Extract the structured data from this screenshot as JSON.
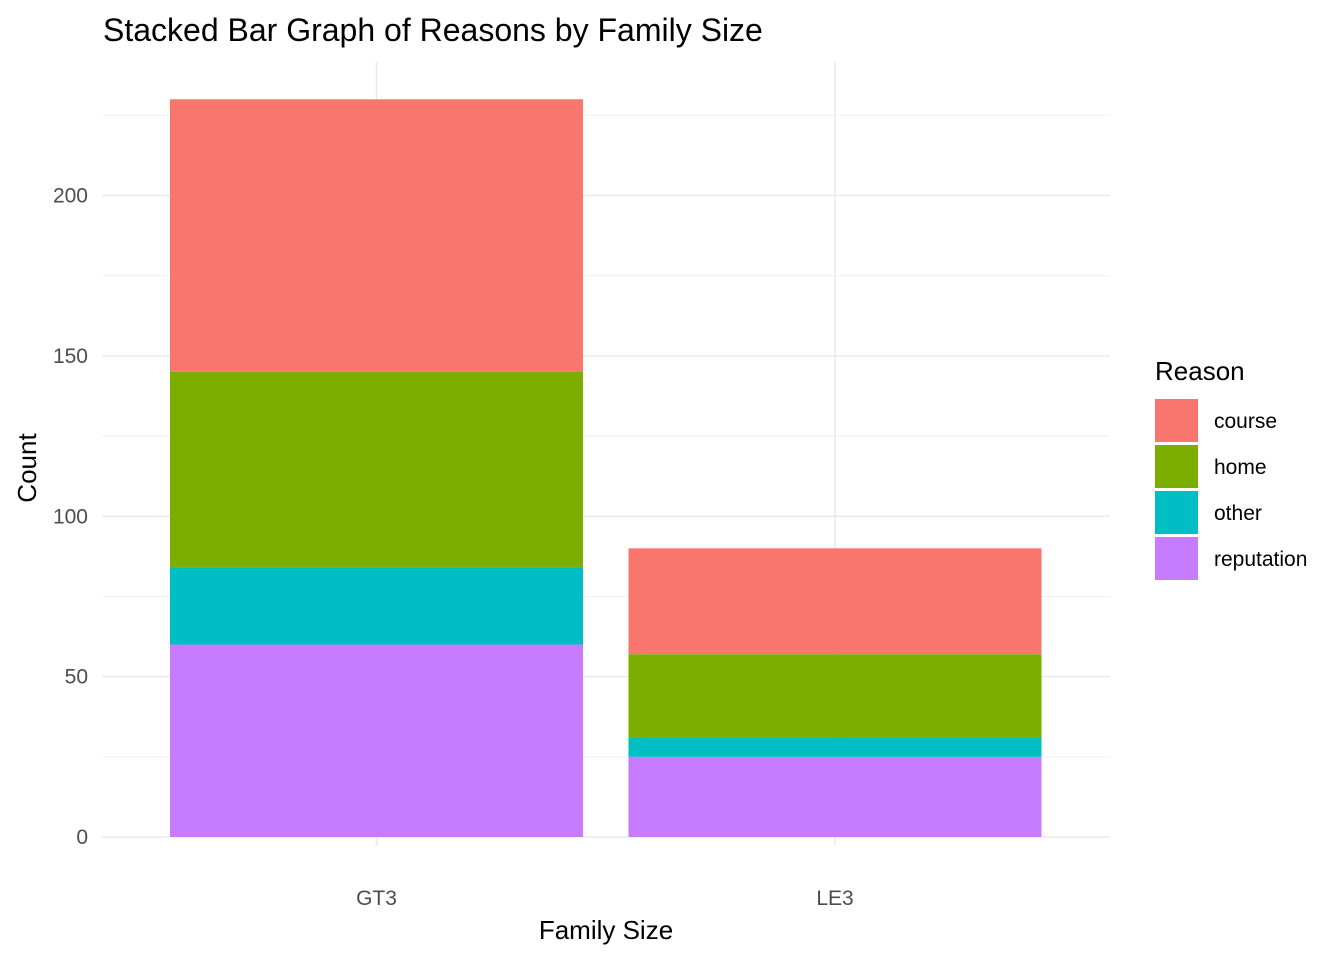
{
  "chart_data": {
    "type": "bar",
    "stacked": true,
    "title": "Stacked Bar Graph of Reasons by Family Size",
    "xlabel": "Family Size",
    "ylabel": "Count",
    "categories": [
      "GT3",
      "LE3"
    ],
    "ylim": [
      0,
      230
    ],
    "yticks": [
      0,
      50,
      100,
      150,
      200
    ],
    "grid": true,
    "legend": {
      "title": "Reason",
      "position": "right"
    },
    "series": [
      {
        "name": "reputation",
        "values": [
          60,
          25
        ],
        "color": "#C77CFF"
      },
      {
        "name": "other",
        "values": [
          24,
          6
        ],
        "color": "#00BFC4"
      },
      {
        "name": "home",
        "values": [
          61,
          26
        ],
        "color": "#7CAE00"
      },
      {
        "name": "course",
        "values": [
          85,
          33
        ],
        "color": "#F8766D"
      }
    ],
    "legend_order": [
      "course",
      "home",
      "other",
      "reputation"
    ]
  }
}
